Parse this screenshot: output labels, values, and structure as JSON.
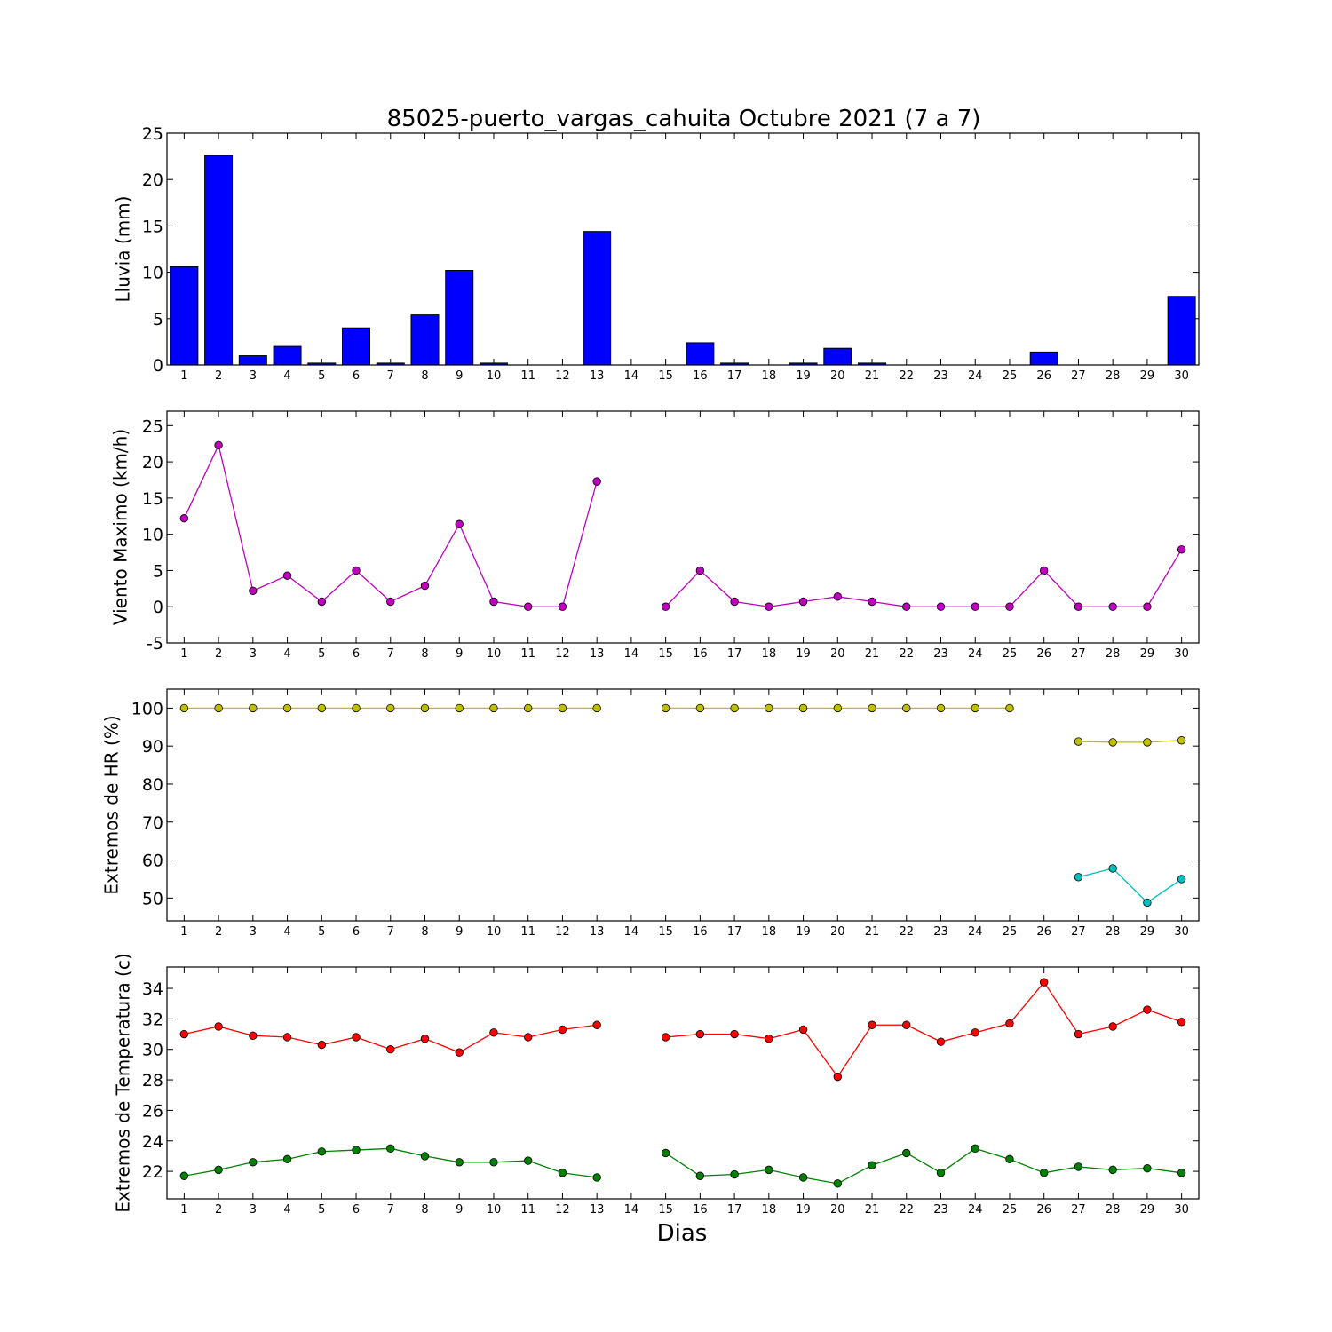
{
  "title": "85025-puerto_vargas_cahuita Octubre 2021  (7 a 7)",
  "xlabel": "Dias",
  "chart_data": [
    {
      "type": "bar",
      "ylabel": "Lluvia (mm)",
      "ylim": [
        0,
        25
      ],
      "yticks": [
        0,
        5,
        10,
        15,
        20,
        25
      ],
      "categories": [
        "1",
        "2",
        "3",
        "4",
        "5",
        "6",
        "7",
        "8",
        "9",
        "10",
        "11",
        "12",
        "13",
        "14",
        "15",
        "16",
        "17",
        "18",
        "19",
        "20",
        "21",
        "22",
        "23",
        "24",
        "25",
        "26",
        "27",
        "28",
        "29",
        "30"
      ],
      "series": [
        {
          "color": "#0000ff",
          "values": [
            10.6,
            22.6,
            1.0,
            2.0,
            0.2,
            4.0,
            0.2,
            5.4,
            10.2,
            0.2,
            0,
            0,
            14.4,
            0,
            0,
            2.4,
            0.2,
            0,
            0.2,
            1.8,
            0.2,
            0,
            0,
            0,
            0,
            1.4,
            0,
            0,
            0,
            7.4
          ]
        }
      ]
    },
    {
      "type": "line",
      "ylabel": "Viento Maximo (km/h)",
      "ylim": [
        -5,
        27
      ],
      "yticks": [
        -5,
        0,
        5,
        10,
        15,
        20,
        25
      ],
      "categories": [
        "1",
        "2",
        "3",
        "4",
        "5",
        "6",
        "7",
        "8",
        "9",
        "10",
        "11",
        "12",
        "13",
        "14",
        "15",
        "16",
        "17",
        "18",
        "19",
        "20",
        "21",
        "22",
        "23",
        "24",
        "25",
        "26",
        "27",
        "28",
        "29",
        "30"
      ],
      "series": [
        {
          "color": "#bf00bf",
          "values": [
            12.2,
            22.3,
            2.2,
            4.3,
            0.7,
            5.0,
            0.7,
            2.9,
            11.4,
            0.7,
            0,
            0,
            17.3,
            null,
            0,
            5.0,
            0.7,
            0,
            0.7,
            1.4,
            0.7,
            0,
            0,
            0,
            0,
            5.0,
            0,
            0,
            0,
            7.9
          ]
        }
      ]
    },
    {
      "type": "line",
      "ylabel": "Extremos de HR (%)",
      "ylim": [
        44,
        105
      ],
      "yticks": [
        50,
        60,
        70,
        80,
        90,
        100
      ],
      "categories": [
        "1",
        "2",
        "3",
        "4",
        "5",
        "6",
        "7",
        "8",
        "9",
        "10",
        "11",
        "12",
        "13",
        "14",
        "15",
        "16",
        "17",
        "18",
        "19",
        "20",
        "21",
        "22",
        "23",
        "24",
        "25",
        "26",
        "27",
        "28",
        "29",
        "30"
      ],
      "series": [
        {
          "color": "#bfbf00",
          "values": [
            100,
            100,
            100,
            100,
            100,
            100,
            100,
            100,
            100,
            100,
            100,
            100,
            100,
            null,
            100,
            100,
            100,
            100,
            100,
            100,
            100,
            100,
            100,
            100,
            100,
            null,
            91.2,
            91.0,
            91.0,
            91.5
          ]
        },
        {
          "color": "#00bfbf",
          "values": [
            null,
            null,
            null,
            null,
            null,
            null,
            null,
            null,
            null,
            null,
            null,
            null,
            null,
            null,
            null,
            null,
            null,
            null,
            null,
            null,
            null,
            null,
            null,
            null,
            null,
            null,
            55.5,
            57.8,
            48.8,
            55.0
          ]
        }
      ]
    },
    {
      "type": "line",
      "ylabel": "Extremos de Temperatura (c)",
      "ylim": [
        20.2,
        35.4
      ],
      "yticks": [
        22,
        24,
        26,
        28,
        30,
        32,
        34
      ],
      "categories": [
        "1",
        "2",
        "3",
        "4",
        "5",
        "6",
        "7",
        "8",
        "9",
        "10",
        "11",
        "12",
        "13",
        "14",
        "15",
        "16",
        "17",
        "18",
        "19",
        "20",
        "21",
        "22",
        "23",
        "24",
        "25",
        "26",
        "27",
        "28",
        "29",
        "30"
      ],
      "series": [
        {
          "color": "#ff0000",
          "values": [
            31.0,
            31.5,
            30.9,
            30.8,
            30.3,
            30.8,
            30.0,
            30.7,
            29.8,
            31.1,
            30.8,
            31.3,
            31.6,
            null,
            30.8,
            31.0,
            31.0,
            30.7,
            31.3,
            28.2,
            31.6,
            31.6,
            30.5,
            31.1,
            31.7,
            34.4,
            31.0,
            31.5,
            32.6,
            31.8
          ]
        },
        {
          "color": "#008000",
          "values": [
            21.7,
            22.1,
            22.6,
            22.8,
            23.3,
            23.4,
            23.5,
            23.0,
            22.6,
            22.6,
            22.7,
            21.9,
            21.6,
            null,
            23.2,
            21.7,
            21.8,
            22.1,
            21.6,
            21.2,
            22.4,
            23.2,
            21.9,
            23.5,
            22.8,
            21.9,
            22.3,
            22.1,
            22.2,
            21.9
          ]
        }
      ]
    }
  ]
}
